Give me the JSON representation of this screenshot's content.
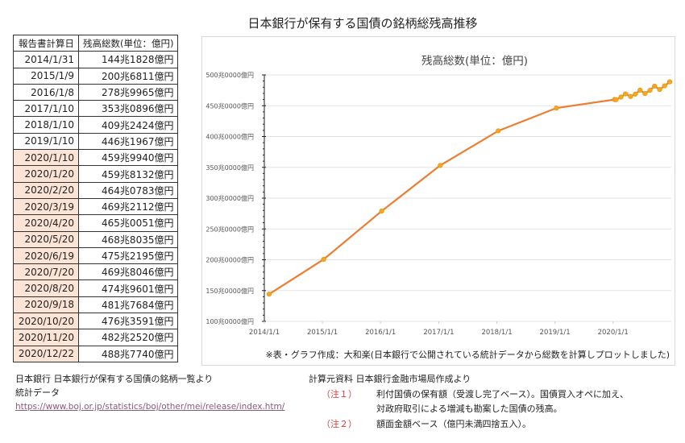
{
  "page_title": "日本銀行が保有する国債の銘柄総残高推移",
  "table": {
    "headers": [
      "報告書計算日",
      "残高総数(単位：億円)"
    ],
    "rows": [
      {
        "date": "2014/1/31",
        "value": "144兆1828億円",
        "highlight": false
      },
      {
        "date": "2015/1/9",
        "value": "200兆6811億円",
        "highlight": false
      },
      {
        "date": "2016/1/8",
        "value": "278兆9965億円",
        "highlight": false
      },
      {
        "date": "2017/1/10",
        "value": "353兆0896億円",
        "highlight": false
      },
      {
        "date": "2018/1/10",
        "value": "409兆2424億円",
        "highlight": false
      },
      {
        "date": "2019/1/10",
        "value": "446兆1967億円",
        "highlight": false
      },
      {
        "date": "2020/1/10",
        "value": "459兆9940億円",
        "highlight": true
      },
      {
        "date": "2020/1/20",
        "value": "459兆8132億円",
        "highlight": true
      },
      {
        "date": "2020/2/20",
        "value": "464兆0783億円",
        "highlight": true
      },
      {
        "date": "2020/3/19",
        "value": "469兆2112億円",
        "highlight": true
      },
      {
        "date": "2020/4/20",
        "value": "465兆0051億円",
        "highlight": true
      },
      {
        "date": "2020/5/20",
        "value": "468兆8035億円",
        "highlight": true
      },
      {
        "date": "2020/6/19",
        "value": "475兆2195億円",
        "highlight": true
      },
      {
        "date": "2020/7/20",
        "value": "469兆8046億円",
        "highlight": true
      },
      {
        "date": "2020/8/20",
        "value": "474兆9601億円",
        "highlight": true
      },
      {
        "date": "2020/9/18",
        "value": "481兆7684億円",
        "highlight": true
      },
      {
        "date": "2020/10/20",
        "value": "476兆3591億円",
        "highlight": true
      },
      {
        "date": "2020/11/20",
        "value": "482兆2520億円",
        "highlight": true
      },
      {
        "date": "2020/12/22",
        "value": "488兆7740億円",
        "highlight": true
      }
    ]
  },
  "chart": {
    "title": "残高総数(単位：億円)",
    "credit": "※表・グラフ作成：大和楽(日本銀行で公開されている統計データから総数を計算しプロットしました)",
    "line_color": "#ed7d31",
    "marker_color": "#f5a623"
  },
  "chart_data": {
    "type": "line",
    "title": "残高総数(単位：億円)",
    "xlabel": "",
    "ylabel": "",
    "x_tick_labels": [
      "2014/1/1",
      "2015/1/1",
      "2016/1/1",
      "2017/1/1",
      "2018/1/1",
      "2019/1/1",
      "2020/1/1"
    ],
    "y_tick_labels": [
      "100兆0000億円",
      "150兆0000億円",
      "200兆0000億円",
      "250兆0000億円",
      "300兆0000億円",
      "350兆0000億円",
      "400兆0000億円",
      "450兆0000億円",
      "500兆0000億円"
    ],
    "ylim": [
      100,
      500
    ],
    "y_unit": "兆円",
    "grid": true,
    "legend": "none",
    "x": [
      "2014/1/31",
      "2015/1/9",
      "2016/1/8",
      "2017/1/10",
      "2018/1/10",
      "2019/1/10",
      "2020/1/10",
      "2020/1/20",
      "2020/2/20",
      "2020/3/19",
      "2020/4/20",
      "2020/5/20",
      "2020/6/19",
      "2020/7/20",
      "2020/8/20",
      "2020/9/18",
      "2020/10/20",
      "2020/11/20",
      "2020/12/22"
    ],
    "series": [
      {
        "name": "残高総数",
        "values": [
          144.1828,
          200.6811,
          278.9965,
          353.0896,
          409.2424,
          446.1967,
          459.994,
          459.8132,
          464.0783,
          469.2112,
          465.0051,
          468.8035,
          475.2195,
          469.8046,
          474.9601,
          481.7684,
          476.3591,
          482.252,
          488.774
        ]
      }
    ]
  },
  "source": {
    "line1": "日本銀行 日本銀行が保有する国債の銘柄一覧より",
    "line2": "統計データ",
    "url": "https://www.boj.or.jp/statistics/boj/other/mei/release/index.htm/"
  },
  "notes": {
    "header": "計算元資料 日本銀行金融市場局作成より",
    "items": [
      {
        "label": "（注１）",
        "text": "利付国債の保有額（受渡し完了ベース）。国債買入オペに加え、"
      },
      {
        "label": "",
        "text": "対政府取引による増減も勘案した国債の残高。"
      },
      {
        "label": "（注２）",
        "text": "額面金額ベース（億円未満四捨五入）。"
      }
    ]
  }
}
